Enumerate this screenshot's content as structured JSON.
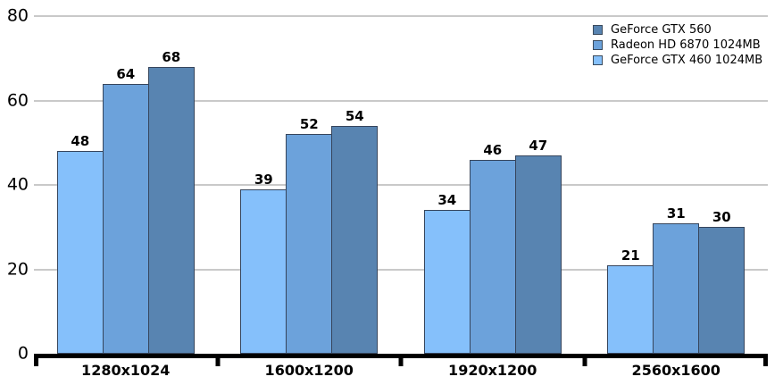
{
  "chart_data": {
    "type": "bar",
    "title": "",
    "categories": [
      "1280x1024",
      "1600x1200",
      "1920x1200",
      "2560x1600"
    ],
    "series": [
      {
        "name": "GeForce GTX 560",
        "color": "#5884B1",
        "values": [
          68,
          54,
          47,
          30
        ]
      },
      {
        "name": "Radeon HD 6870 1024MB",
        "color": "#6CA2DB",
        "values": [
          64,
          52,
          46,
          31
        ]
      },
      {
        "name": "GeForce GTX 460 1024MB",
        "color": "#85C0FB",
        "values": [
          48,
          39,
          34,
          21
        ]
      }
    ],
    "bar_order": [
      2,
      1,
      0
    ],
    "y_ticks": [
      0,
      20,
      40,
      60,
      80
    ],
    "ylim": [
      0,
      80
    ],
    "xlabel": "",
    "ylabel": "",
    "grid": "horizontal",
    "gridline_color": "#C9C9C9",
    "axis_color": "#000000",
    "bar_border_color": "#36455C",
    "legend_position": "top-right",
    "data_labels_shown": true
  }
}
